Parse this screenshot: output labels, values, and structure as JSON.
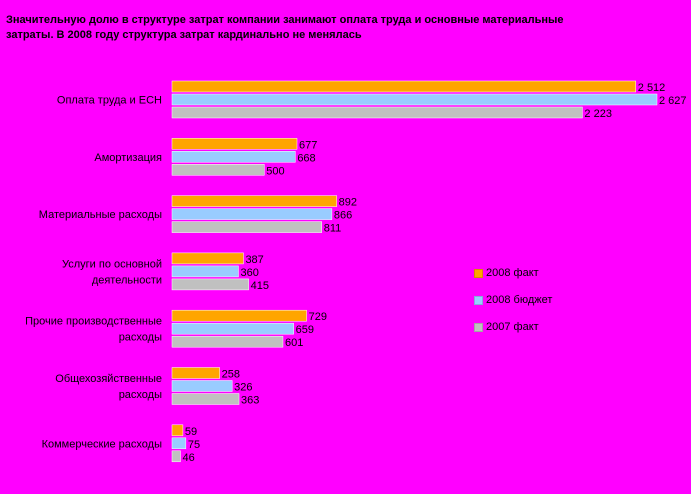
{
  "title": "Значительную долю в структуре затрат компании занимают оплата труда и основные материальные затраты. В 2008 году структура затрат кардинально не менялась",
  "chart_data": {
    "type": "bar",
    "orientation": "horizontal",
    "categories": [
      [
        "Оплата труда и ЕСН"
      ],
      [
        "Амортизация"
      ],
      [
        "Материальные расходы"
      ],
      [
        "Услуги по основной",
        "деятельности"
      ],
      [
        "Прочие производственные",
        "расходы"
      ],
      [
        "Общехозяйственные",
        "расходы"
      ],
      [
        "Коммерческие расходы"
      ]
    ],
    "series": [
      {
        "name": "2008 факт",
        "color": "#FFA500",
        "values": [
          2512,
          677,
          892,
          387,
          729,
          258,
          59
        ],
        "labels": [
          "2 512",
          "677",
          "892",
          "387",
          "729",
          "258",
          "59"
        ]
      },
      {
        "name": "2008 бюджет",
        "color": "#99CCFF",
        "values": [
          2627,
          668,
          866,
          360,
          659,
          326,
          75
        ],
        "labels": [
          "2 627",
          "668",
          "866",
          "360",
          "659",
          "326",
          "75"
        ]
      },
      {
        "name": "2007 факт",
        "color": "#C0C0C0",
        "values": [
          2223,
          500,
          811,
          415,
          601,
          363,
          46
        ],
        "labels": [
          "2 223",
          "500",
          "811",
          "415",
          "601",
          "363",
          "46"
        ]
      }
    ],
    "xlim": [
      0,
      2700
    ],
    "grid": false,
    "legend_position": "right"
  }
}
